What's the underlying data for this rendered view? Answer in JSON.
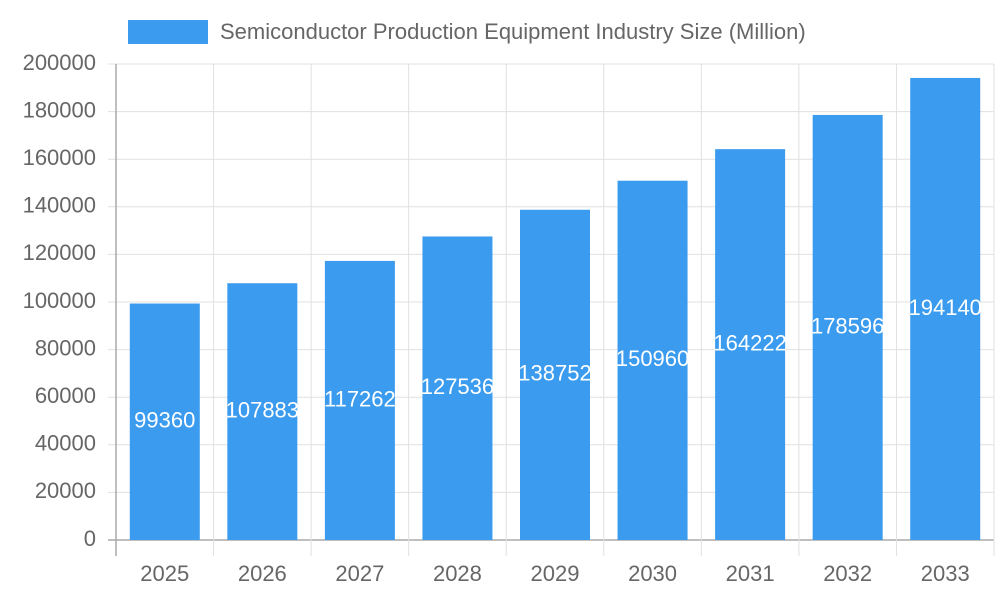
{
  "chart_data": {
    "type": "bar",
    "categories": [
      "2025",
      "2026",
      "2027",
      "2028",
      "2029",
      "2030",
      "2031",
      "2032",
      "2033"
    ],
    "series": [
      {
        "name": "Semiconductor Production Equipment Industry Size (Million)",
        "color": "#3a9bef",
        "values": [
          99360,
          107883,
          117262,
          127536,
          138752,
          150960,
          164222,
          178596,
          194140
        ]
      }
    ],
    "ylim": [
      0,
      200000
    ],
    "yticks": [
      0,
      20000,
      40000,
      60000,
      80000,
      100000,
      120000,
      140000,
      160000,
      180000,
      200000
    ],
    "grid": true,
    "legend": "top"
  }
}
